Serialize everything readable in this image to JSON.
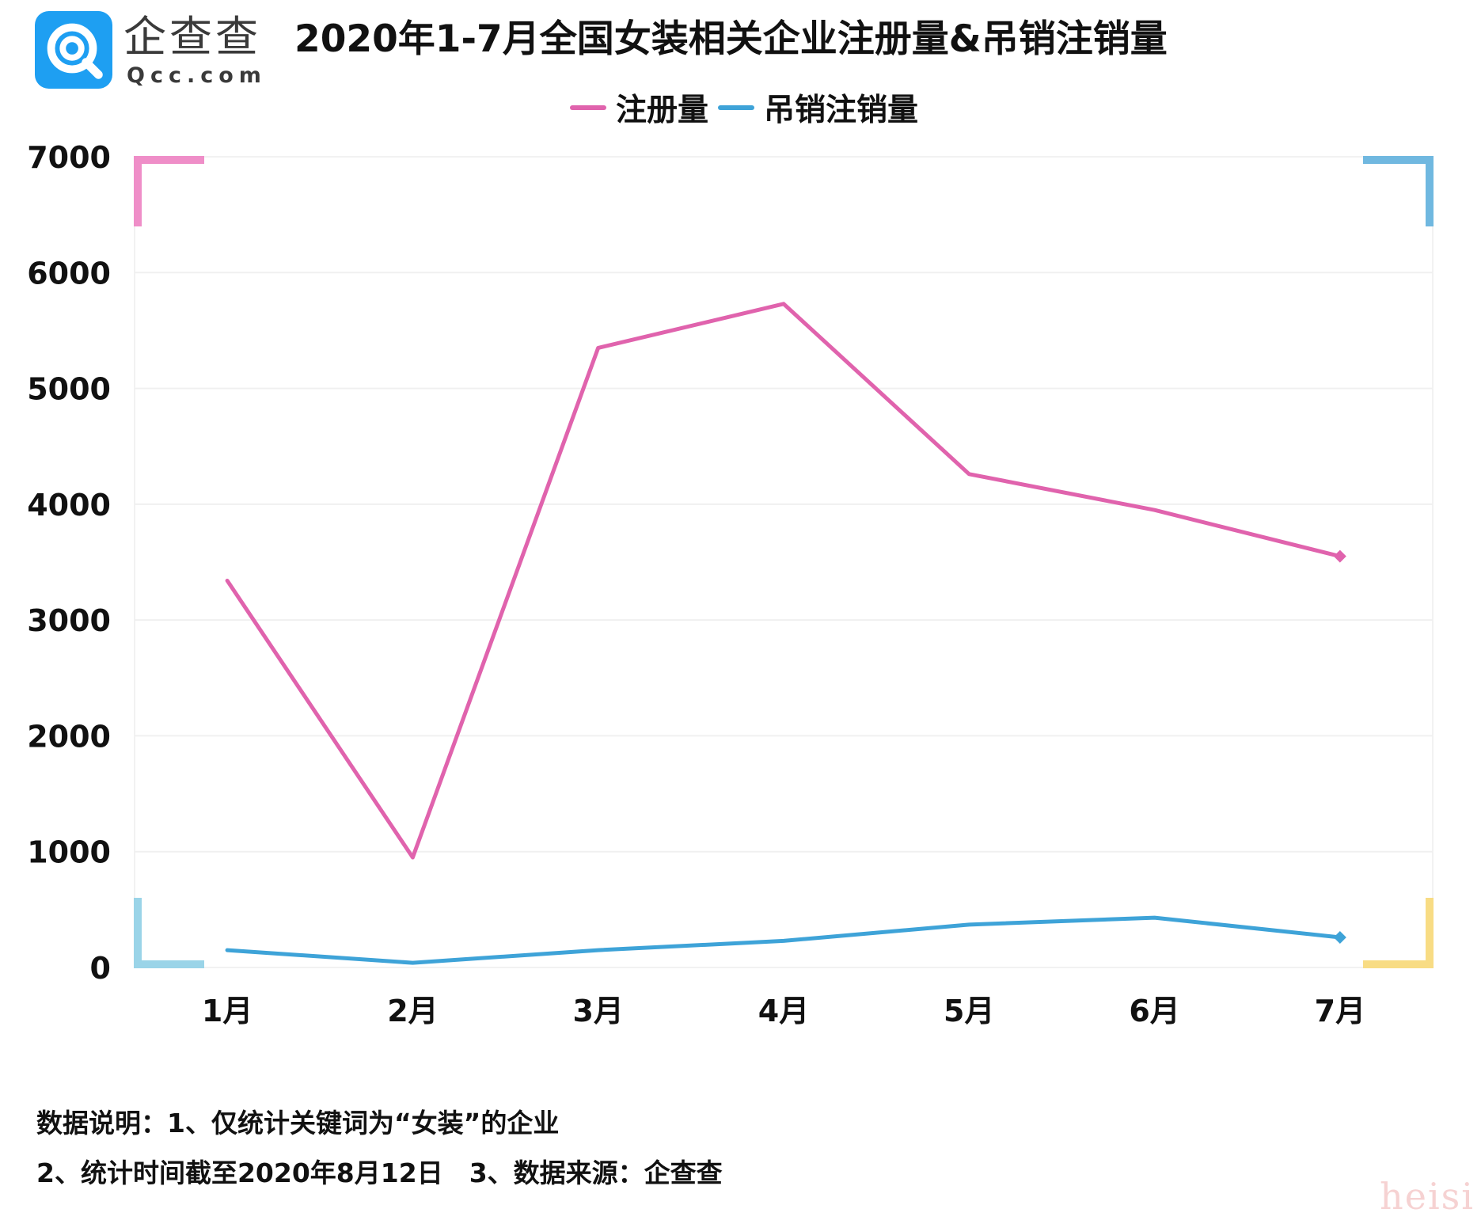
{
  "brand": {
    "name_cn": "企查查",
    "name_en": "Qcc.com"
  },
  "chart_data": {
    "type": "line",
    "title": "2020年1-7月全国女装相关企业注册量&吊销注销量",
    "categories": [
      "1月",
      "2月",
      "3月",
      "4月",
      "5月",
      "6月",
      "7月"
    ],
    "series": [
      {
        "name": "注册量",
        "color": "#e063ad",
        "values": [
          3340,
          950,
          5350,
          5730,
          4260,
          3950,
          3550
        ]
      },
      {
        "name": "吊销注销量",
        "color": "#3ea3d8",
        "values": [
          150,
          40,
          150,
          230,
          370,
          430,
          260
        ]
      }
    ],
    "y_ticks": [
      "0",
      "1000",
      "2000",
      "3000",
      "4000",
      "5000",
      "6000",
      "7000"
    ],
    "ylim": [
      0,
      7000
    ],
    "grid": true,
    "legend_position": "top-center",
    "corner_colors": [
      "#ef8ec8",
      "#70b8e0",
      "#9ad4e8",
      "#f8dc84"
    ]
  },
  "notes": [
    "数据说明：1、仅统计关键词为“女装”的企业",
    "2、统计时间截至2020年8月12日　3、数据来源：企查查"
  ],
  "watermark": "heisi"
}
